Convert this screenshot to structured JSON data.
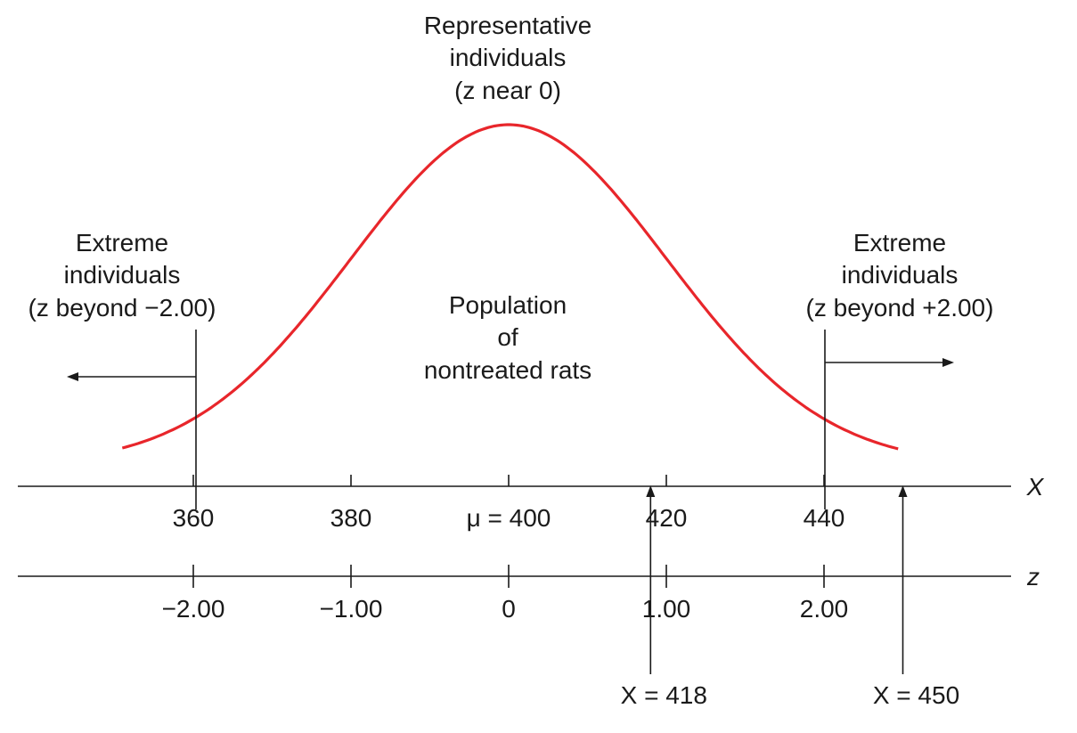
{
  "colors": {
    "curve": "#e8262b",
    "ink": "#1a1a1a",
    "background": "#ffffff"
  },
  "distribution": {
    "mean": 400,
    "sd": 20
  },
  "labels": {
    "center_label": [
      "Representative",
      "individuals",
      "(z near 0)"
    ],
    "left_label": [
      "Extreme",
      "individuals",
      "(z beyond −2.00)"
    ],
    "right_label": [
      "Extreme",
      "individuals",
      "(z beyond +2.00)"
    ],
    "population_label": [
      "Population",
      "of",
      "nontreated rats"
    ]
  },
  "x_axis": {
    "name": "X",
    "ticks": [
      {
        "value": 360,
        "label": "360"
      },
      {
        "value": 380,
        "label": "380"
      },
      {
        "value": 400,
        "label": "μ = 400"
      },
      {
        "value": 420,
        "label": "420"
      },
      {
        "value": 440,
        "label": "440"
      }
    ]
  },
  "z_axis": {
    "name": "z",
    "ticks": [
      {
        "value": -2,
        "label": "−2.00"
      },
      {
        "value": -1,
        "label": "−1.00"
      },
      {
        "value": 0,
        "label": "0"
      },
      {
        "value": 1,
        "label": "1.00"
      },
      {
        "value": 2,
        "label": "2.00"
      }
    ]
  },
  "markers": [
    {
      "value": 418,
      "label": "X = 418"
    },
    {
      "value": 450,
      "label": "X = 450"
    }
  ]
}
